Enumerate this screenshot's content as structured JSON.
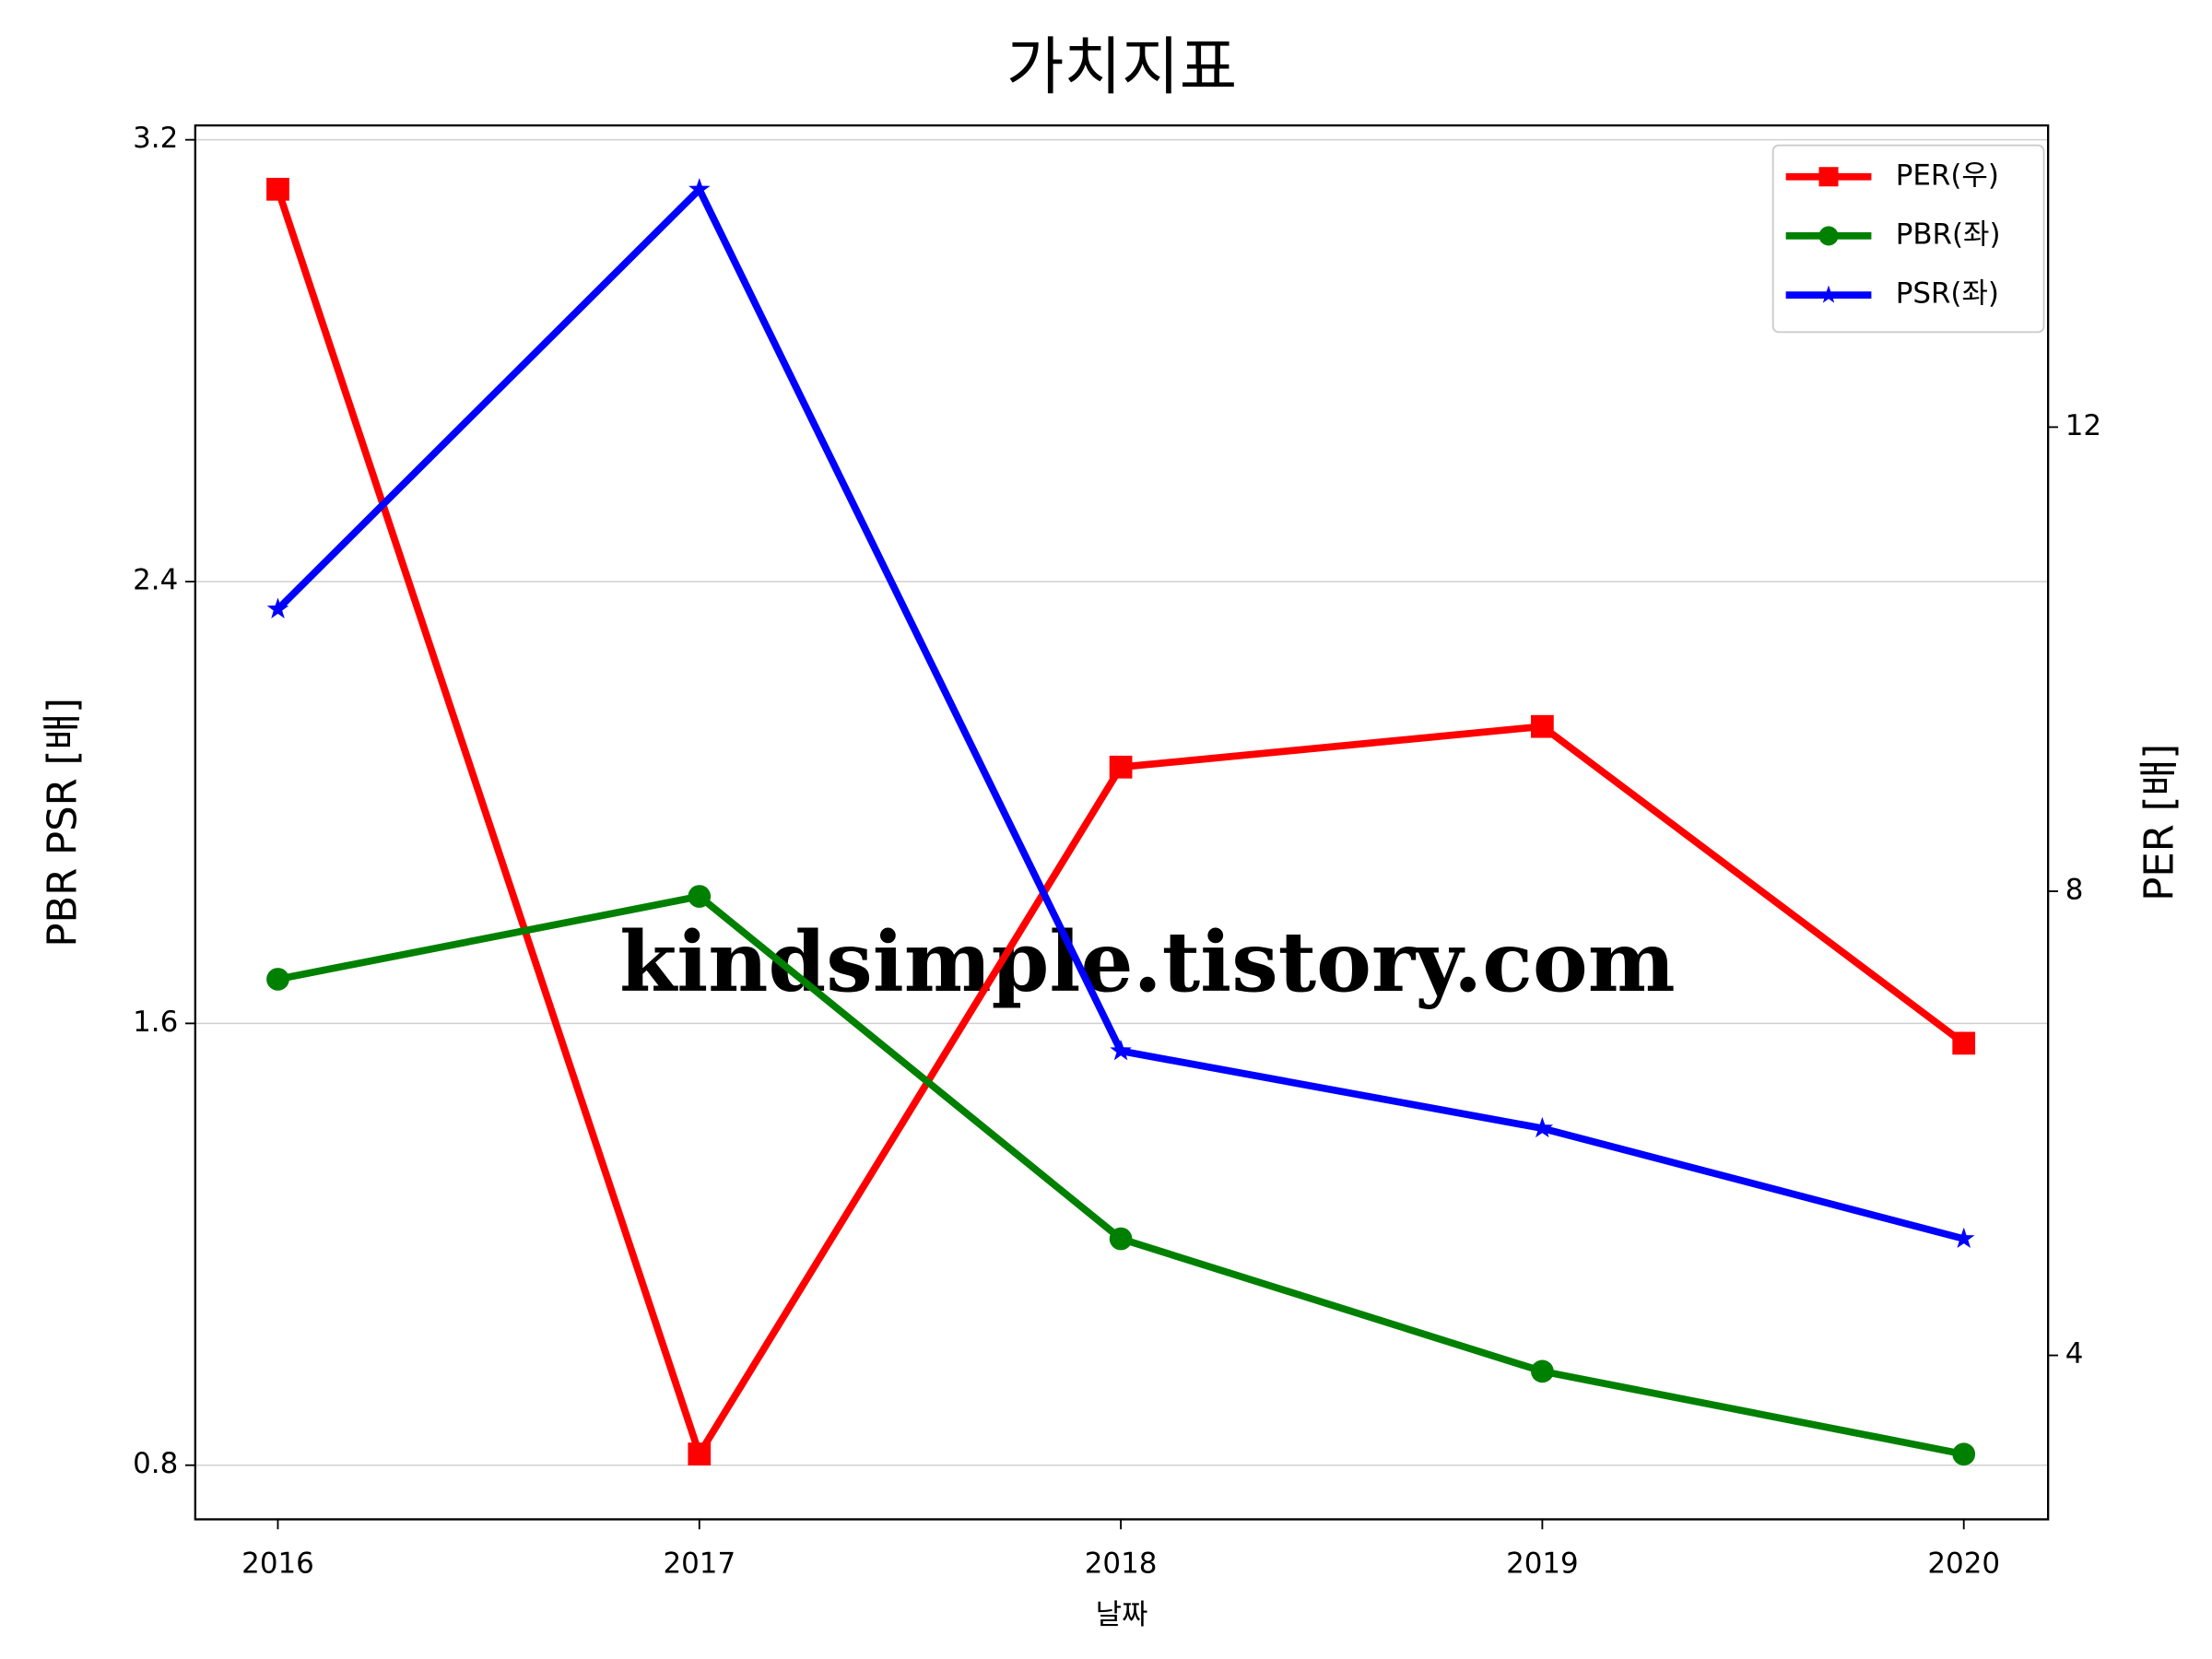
{
  "chart_data": {
    "type": "line",
    "title": "가치지표",
    "x_label": "날짜",
    "y_label": "PBR PSR [배]",
    "y2_label": "PER [배]",
    "y_label_color": "#008000",
    "y2_label_color": "#ff0000",
    "x": [
      2016,
      2017,
      2018,
      2019,
      2020
    ],
    "xlim": [
      2015.804,
      2020.2
    ],
    "xticks": [
      2016,
      2017,
      2018,
      2019,
      2020
    ],
    "ylim": [
      0.702,
      3.226
    ],
    "yticks": [
      0.8,
      1.6,
      2.4,
      3.2
    ],
    "y2lim": [
      2.587,
      14.6
    ],
    "y2ticks": [
      4,
      8,
      12
    ],
    "grid": true,
    "legend": "upper right",
    "annotation": "kindsimple.tistory.com",
    "annotation_color": "#e4a8ee",
    "series": [
      {
        "name": "PER(우)",
        "color": "#ff0000",
        "marker": "square",
        "axis": "y2",
        "values": [
          14.05,
          3.15,
          9.07,
          9.42,
          6.69
        ]
      },
      {
        "name": "PBR(좌)",
        "color": "#008000",
        "marker": "circle",
        "values": [
          1.68,
          1.83,
          1.21,
          0.97,
          0.82
        ]
      },
      {
        "name": "PSR(좌)",
        "color": "#0000ff",
        "marker": "star",
        "values": [
          2.35,
          3.11,
          1.55,
          1.41,
          1.21
        ]
      }
    ]
  }
}
